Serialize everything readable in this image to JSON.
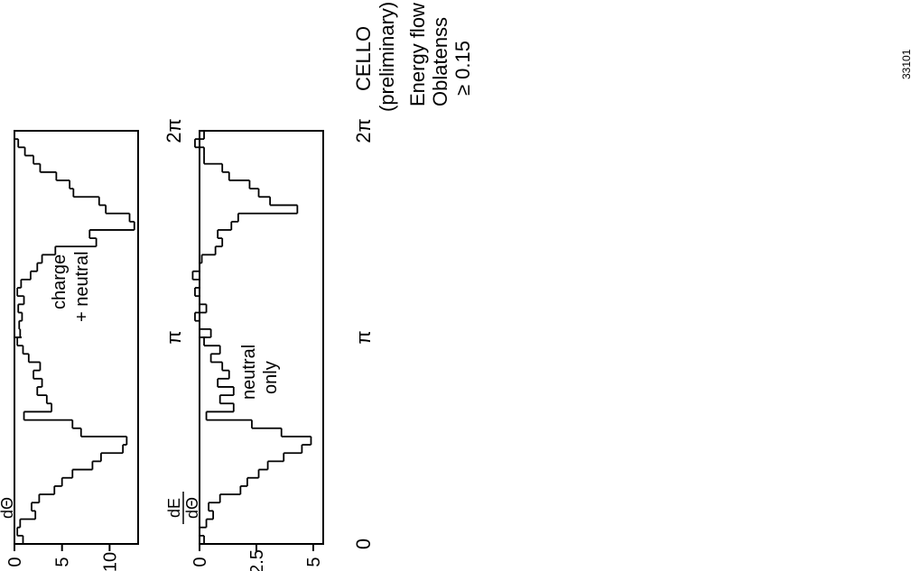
{
  "chart_data": [
    {
      "type": "step",
      "panel_label": "charge + neutral",
      "label_lines": [
        "charge",
        "+ neutral"
      ],
      "xlabel": "",
      "ylabel_numerator": "dE",
      "ylabel_denominator": "dΘ",
      "xlim": [
        0,
        6.2832
      ],
      "ylim": [
        0,
        13
      ],
      "xticks": [
        {
          "value": 0,
          "label": "0"
        },
        {
          "value": 3.1416,
          "label": "π"
        },
        {
          "value": 6.2832,
          "label": "2π"
        }
      ],
      "yticks": [
        {
          "value": 0,
          "label": "0"
        },
        {
          "value": 5,
          "label": "5"
        },
        {
          "value": 10,
          "label": "10"
        }
      ],
      "bin_edges": [
        0,
        0.1257,
        0.2513,
        0.377,
        0.5027,
        0.6283,
        0.754,
        0.8796,
        1.0053,
        1.131,
        1.2566,
        1.3823,
        1.508,
        1.6336,
        1.7593,
        1.885,
        2.0106,
        2.1363,
        2.2619,
        2.3876,
        2.5133,
        2.6389,
        2.7646,
        2.8903,
        3.0159,
        3.1416,
        3.2673,
        3.3929,
        3.5186,
        3.6442,
        3.7699,
        3.8956,
        4.0212,
        4.1469,
        4.2726,
        4.3982,
        4.5239,
        4.6496,
        4.7752,
        4.9009,
        5.0265,
        5.1522,
        5.2779,
        5.4035,
        5.5292,
        5.6549,
        5.7805,
        5.9062,
        6.0319,
        6.1575,
        6.2832
      ],
      "values": [
        0.9,
        0.3,
        0.6,
        2.2,
        1.8,
        2.6,
        4.2,
        5.0,
        6.1,
        8.2,
        9.1,
        11.4,
        11.8,
        7.0,
        6.1,
        1.0,
        3.9,
        3.4,
        2.4,
        2.9,
        2.0,
        2.7,
        1.5,
        0.9,
        0.3,
        0.6,
        0.5,
        0.8,
        0.4,
        1.0,
        0.3,
        0.7,
        1.7,
        2.4,
        2.9,
        4.3,
        8.6,
        7.9,
        12.6,
        12.1,
        9.6,
        8.9,
        6.2,
        5.8,
        4.4,
        2.7,
        2.0,
        1.1,
        0.4,
        0.0
      ]
    },
    {
      "type": "step",
      "panel_label": "neutral only",
      "label_lines": [
        "neutral",
        "only"
      ],
      "xlabel": "",
      "ylabel_numerator": "dE",
      "ylabel_denominator": "dΘ",
      "xlim": [
        0,
        6.2832
      ],
      "ylim": [
        0,
        5
      ],
      "xticks": [
        {
          "value": 0,
          "label": "0"
        },
        {
          "value": 3.1416,
          "label": "π"
        },
        {
          "value": 6.2832,
          "label": "2π"
        }
      ],
      "yticks": [
        {
          "value": 0,
          "label": "0"
        },
        {
          "value": 2.5,
          "label": "2.5"
        },
        {
          "value": 5,
          "label": "5"
        }
      ],
      "bin_edges": [
        0,
        0.1257,
        0.2513,
        0.377,
        0.5027,
        0.6283,
        0.754,
        0.8796,
        1.0053,
        1.131,
        1.2566,
        1.3823,
        1.508,
        1.6336,
        1.7593,
        1.885,
        2.0106,
        2.1363,
        2.2619,
        2.3876,
        2.5133,
        2.6389,
        2.7646,
        2.8903,
        3.0159,
        3.1416,
        3.2673,
        3.3929,
        3.5186,
        3.6442,
        3.7699,
        3.8956,
        4.0212,
        4.1469,
        4.2726,
        4.3982,
        4.5239,
        4.6496,
        4.7752,
        4.9009,
        5.0265,
        5.1522,
        5.2779,
        5.4035,
        5.5292,
        5.6549,
        5.7805,
        5.9062,
        6.0319,
        6.1575,
        6.2832
      ],
      "values": [
        0.2,
        0.0,
        0.3,
        0.6,
        0.4,
        0.9,
        1.8,
        2.1,
        2.6,
        3.0,
        3.7,
        4.5,
        4.9,
        3.6,
        2.3,
        0.3,
        1.5,
        0.9,
        1.5,
        0.8,
        1.3,
        1.0,
        0.5,
        0.9,
        0.2,
        0.5,
        0.0,
        -0.2,
        0.3,
        0.0,
        -0.2,
        0.0,
        -0.3,
        0.0,
        0.1,
        0.7,
        1.0,
        0.8,
        1.4,
        1.7,
        4.3,
        3.1,
        2.6,
        2.2,
        1.3,
        1.0,
        0.2,
        0.2,
        -0.2,
        0.2
      ]
    }
  ],
  "legend": {
    "title": "CELLO",
    "subtitle": "(preliminary)",
    "lines": [
      "Energy flow",
      "Oblatenss",
      "≥ 0.15"
    ]
  },
  "figure_id": "33101"
}
